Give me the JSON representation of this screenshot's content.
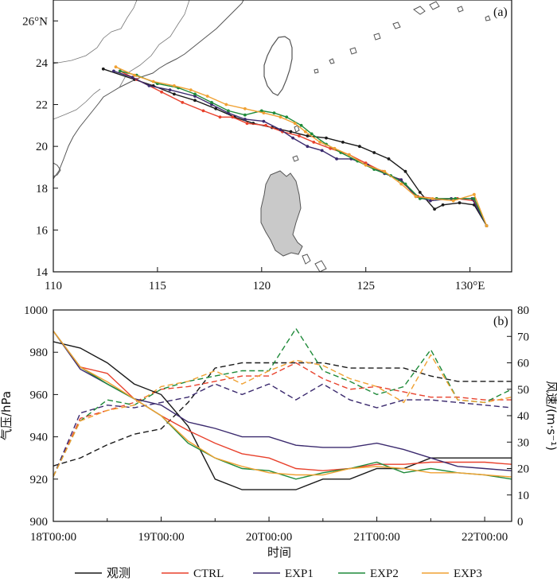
{
  "colors": {
    "obs": "#1a1a1a",
    "ctrl": "#e8412c",
    "exp1": "#3b2a6e",
    "exp2": "#1f8a3a",
    "exp3": "#f0a132",
    "land": "#c9c9c9",
    "coast": "#555555"
  },
  "legend": {
    "obs": "观测",
    "ctrl": "CTRL",
    "exp1": "EXP1",
    "exp2": "EXP2",
    "exp3": "EXP3"
  },
  "chart_data": [
    {
      "type": "line",
      "panel_label": "(a)",
      "xlim": [
        110,
        132
      ],
      "ylim": [
        14,
        27
      ],
      "x_ticks": [
        {
          "value": 110,
          "label": "110"
        },
        {
          "value": 115,
          "label": "115"
        },
        {
          "value": 120,
          "label": "120"
        },
        {
          "value": 125,
          "label": "125"
        },
        {
          "value": 130,
          "label": "130°E"
        }
      ],
      "y_ticks": [
        {
          "value": 14,
          "label": "14"
        },
        {
          "value": 16,
          "label": "16"
        },
        {
          "value": 18,
          "label": "18"
        },
        {
          "value": 20,
          "label": "20"
        },
        {
          "value": 22,
          "label": "22"
        },
        {
          "value": 24,
          "label": "24"
        },
        {
          "value": 26,
          "label": "26°N"
        }
      ],
      "series": [
        {
          "key": "obs",
          "name": "观测",
          "points": [
            [
              130.8,
              16.2
            ],
            [
              130.2,
              17.2
            ],
            [
              129.5,
              17.3
            ],
            [
              128.7,
              17.2
            ],
            [
              128.3,
              17.0
            ],
            [
              127.6,
              17.8
            ],
            [
              126.9,
              18.8
            ],
            [
              126.1,
              19.4
            ],
            [
              125.4,
              19.7
            ],
            [
              124.7,
              20.0
            ],
            [
              123.9,
              20.2
            ],
            [
              123.1,
              20.4
            ],
            [
              122.2,
              20.5
            ],
            [
              121.4,
              20.7
            ],
            [
              120.5,
              20.9
            ],
            [
              119.6,
              21.1
            ],
            [
              118.7,
              21.4
            ],
            [
              117.8,
              21.8
            ],
            [
              116.8,
              22.2
            ],
            [
              115.8,
              22.5
            ],
            [
              114.8,
              22.9
            ],
            [
              113.9,
              23.2
            ],
            [
              112.4,
              23.7
            ]
          ]
        },
        {
          "key": "ctrl",
          "name": "CTRL",
          "points": [
            [
              130.8,
              16.2
            ],
            [
              130.2,
              17.4
            ],
            [
              129.4,
              17.5
            ],
            [
              128.4,
              17.5
            ],
            [
              127.5,
              17.6
            ],
            [
              126.6,
              18.4
            ],
            [
              125.8,
              18.8
            ],
            [
              125.0,
              19.2
            ],
            [
              124.2,
              19.6
            ],
            [
              123.3,
              19.9
            ],
            [
              122.5,
              20.2
            ],
            [
              121.8,
              20.5
            ],
            [
              121.0,
              20.7
            ],
            [
              120.2,
              21.0
            ],
            [
              119.3,
              21.1
            ],
            [
              118.6,
              21.4
            ],
            [
              118.0,
              21.4
            ],
            [
              117.2,
              21.7
            ],
            [
              116.2,
              22.1
            ],
            [
              115.2,
              22.6
            ],
            [
              114.0,
              23.2
            ],
            [
              113.2,
              23.6
            ]
          ]
        },
        {
          "key": "exp1",
          "name": "EXP1",
          "points": [
            [
              130.8,
              16.2
            ],
            [
              130.1,
              17.5
            ],
            [
              129.1,
              17.5
            ],
            [
              128.1,
              17.4
            ],
            [
              127.4,
              17.6
            ],
            [
              126.7,
              18.4
            ],
            [
              125.9,
              18.7
            ],
            [
              125.1,
              19.1
            ],
            [
              124.3,
              19.4
            ],
            [
              123.6,
              19.4
            ],
            [
              122.9,
              19.8
            ],
            [
              122.2,
              20.0
            ],
            [
              121.5,
              20.4
            ],
            [
              120.9,
              20.8
            ],
            [
              120.1,
              21.2
            ],
            [
              119.2,
              21.3
            ],
            [
              118.4,
              21.6
            ],
            [
              117.6,
              22.0
            ],
            [
              116.8,
              22.4
            ],
            [
              115.6,
              22.7
            ],
            [
              114.6,
              22.9
            ],
            [
              113.8,
              23.3
            ],
            [
              112.9,
              23.6
            ]
          ]
        },
        {
          "key": "exp2",
          "name": "EXP2",
          "points": [
            [
              130.8,
              16.2
            ],
            [
              130.2,
              17.5
            ],
            [
              129.3,
              17.5
            ],
            [
              128.4,
              17.5
            ],
            [
              127.6,
              17.5
            ],
            [
              126.9,
              18.2
            ],
            [
              126.2,
              18.6
            ],
            [
              125.4,
              18.9
            ],
            [
              124.6,
              19.3
            ],
            [
              123.8,
              19.7
            ],
            [
              123.1,
              20.1
            ],
            [
              122.4,
              20.6
            ],
            [
              121.9,
              21.0
            ],
            [
              121.2,
              21.4
            ],
            [
              120.6,
              21.6
            ],
            [
              120.0,
              21.7
            ],
            [
              119.2,
              21.5
            ],
            [
              118.4,
              21.7
            ],
            [
              117.6,
              22.1
            ],
            [
              116.8,
              22.5
            ],
            [
              116.0,
              22.8
            ],
            [
              115.0,
              23.0
            ],
            [
              114.0,
              23.4
            ],
            [
              113.2,
              23.6
            ]
          ]
        },
        {
          "key": "exp3",
          "name": "EXP3",
          "points": [
            [
              130.8,
              16.2
            ],
            [
              130.2,
              17.7
            ],
            [
              129.2,
              17.4
            ],
            [
              128.2,
              17.5
            ],
            [
              127.4,
              17.6
            ],
            [
              126.7,
              18.2
            ],
            [
              125.9,
              18.8
            ],
            [
              125.0,
              19.1
            ],
            [
              124.2,
              19.6
            ],
            [
              123.5,
              19.9
            ],
            [
              122.8,
              20.2
            ],
            [
              122.1,
              20.7
            ],
            [
              121.6,
              21.1
            ],
            [
              120.9,
              21.4
            ],
            [
              120.1,
              21.6
            ],
            [
              119.2,
              21.8
            ],
            [
              118.3,
              22.0
            ],
            [
              117.4,
              22.4
            ],
            [
              116.6,
              22.7
            ],
            [
              115.8,
              22.9
            ],
            [
              114.8,
              23.1
            ],
            [
              113.9,
              23.4
            ],
            [
              113.0,
              23.8
            ]
          ]
        }
      ]
    },
    {
      "type": "line",
      "panel_label": "(b)",
      "xlabel": "时间",
      "ylabel_left": "气压/hPa",
      "ylabel_right": "风速/(m·s⁻¹)",
      "xlim": [
        0,
        4.25
      ],
      "ylim_left": [
        900,
        1000
      ],
      "ylim_right": [
        0,
        80
      ],
      "x_ticks": [
        {
          "value": 0,
          "label": "18T00:00"
        },
        {
          "value": 1,
          "label": "19T00:00"
        },
        {
          "value": 2,
          "label": "20T00:00"
        },
        {
          "value": 3,
          "label": "21T00:00"
        },
        {
          "value": 4,
          "label": "22T00:00"
        }
      ],
      "y_ticks_left": [
        900,
        920,
        940,
        960,
        980,
        1000
      ],
      "y_ticks_right": [
        0,
        10,
        20,
        30,
        40,
        50,
        60,
        70,
        80
      ],
      "x": [
        0,
        0.25,
        0.5,
        0.75,
        1.0,
        1.25,
        1.5,
        1.75,
        2.0,
        2.25,
        2.5,
        2.75,
        3.0,
        3.25,
        3.5,
        3.75,
        4.0,
        4.25
      ],
      "pressure": [
        {
          "key": "obs",
          "name": "观测",
          "values": [
            985,
            982,
            975,
            965,
            960,
            945,
            920,
            915,
            915,
            915,
            920,
            920,
            925,
            925,
            930,
            930,
            930,
            930
          ]
        },
        {
          "key": "ctrl",
          "name": "CTRL",
          "values": [
            990,
            973,
            970,
            958,
            950,
            943,
            937,
            932,
            930,
            925,
            924,
            925,
            927,
            927,
            928,
            928,
            928,
            927
          ]
        },
        {
          "key": "exp1",
          "name": "EXP1",
          "values": [
            990,
            972,
            965,
            958,
            955,
            947,
            944,
            940,
            940,
            936,
            935,
            935,
            937,
            934,
            930,
            926,
            925,
            924
          ]
        },
        {
          "key": "exp2",
          "name": "EXP2",
          "values": [
            990,
            973,
            965,
            958,
            950,
            937,
            930,
            925,
            924,
            920,
            923,
            925,
            928,
            923,
            925,
            923,
            922,
            920
          ]
        },
        {
          "key": "exp3",
          "name": "EXP3",
          "values": [
            990,
            973,
            966,
            958,
            950,
            938,
            930,
            926,
            923,
            922,
            922,
            925,
            926,
            925,
            923,
            923,
            922,
            921
          ]
        }
      ],
      "wind": [
        {
          "key": "obs",
          "name": "观测",
          "values": [
            21,
            24,
            29,
            33,
            35,
            45,
            58,
            60,
            60,
            60,
            60,
            58,
            58,
            58,
            55,
            53,
            53,
            53
          ]
        },
        {
          "key": "ctrl",
          "name": "CTRL",
          "values": [
            17,
            39,
            42,
            45,
            50,
            51,
            53,
            55,
            55,
            60,
            54,
            50,
            51,
            49,
            47,
            47,
            46,
            46
          ]
        },
        {
          "key": "exp1",
          "name": "EXP1",
          "values": [
            17,
            41,
            44,
            43,
            45,
            47,
            52,
            48,
            52,
            46,
            52,
            46,
            43,
            46,
            46,
            45,
            44,
            43
          ]
        },
        {
          "key": "exp2",
          "name": "EXP2",
          "values": [
            17,
            38,
            46,
            44,
            50,
            53,
            55,
            57,
            57,
            73,
            57,
            53,
            48,
            51,
            65,
            46,
            45,
            50
          ]
        },
        {
          "key": "exp3",
          "name": "EXP3",
          "values": [
            17,
            38,
            42,
            44,
            51,
            53,
            57,
            52,
            57,
            61,
            59,
            54,
            51,
            45,
            63,
            46,
            45,
            47
          ]
        }
      ]
    }
  ]
}
